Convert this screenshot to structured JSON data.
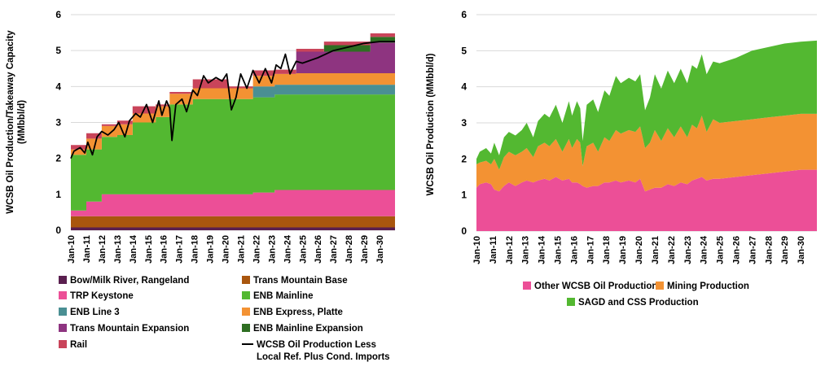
{
  "chart_data": [
    {
      "type": "area",
      "stacking": "step",
      "ylabel_line1": "WCSB Oil Production/Takeaway Capacity",
      "ylabel_line2": "(MMbbl/d)",
      "ylim": [
        0,
        6
      ],
      "yticks": [
        "0",
        "1",
        "2",
        "3",
        "4",
        "5",
        "6"
      ],
      "xlim": [
        2010,
        2031
      ],
      "xticks": [
        "Jan-10",
        "Jan-11",
        "Jan-12",
        "Jan-13",
        "Jan-14",
        "Jan-15",
        "Jan-16",
        "Jan-17",
        "Jan-18",
        "Jan-19",
        "Jan-20",
        "Jan-21",
        "Jan-22",
        "Jan-23",
        "Jan-24",
        "Jan-25",
        "Jan-26",
        "Jan-27",
        "Jan-28",
        "Jan-29",
        "Jan-30"
      ],
      "grid": true,
      "legend_position": "bottom",
      "x": [
        2010,
        2011,
        2012,
        2013,
        2014,
        2015.5,
        2016.4,
        2017.9,
        2020.2,
        2021.8,
        2023.2,
        2024.6,
        2026.4,
        2029.4
      ],
      "series": [
        {
          "name": "Bow/Milk River, Rangeland",
          "color": "#5a1f4f",
          "values": [
            0.08,
            0.08,
            0.08,
            0.08,
            0.08,
            0.08,
            0.08,
            0.08,
            0.08,
            0.08,
            0.08,
            0.08,
            0.08,
            0.08
          ]
        },
        {
          "name": "Trans Mountain Base",
          "color": "#a9560e",
          "values": [
            0.31,
            0.31,
            0.31,
            0.31,
            0.31,
            0.31,
            0.31,
            0.31,
            0.31,
            0.31,
            0.31,
            0.31,
            0.31,
            0.31
          ]
        },
        {
          "name": "TRP Keystone",
          "color": "#ec4f97",
          "values": [
            0.16,
            0.41,
            0.61,
            0.61,
            0.61,
            0.61,
            0.61,
            0.61,
            0.61,
            0.66,
            0.73,
            0.73,
            0.73,
            0.73
          ]
        },
        {
          "name": "ENB Mainline",
          "color": "#53b831",
          "values": [
            1.55,
            1.45,
            1.6,
            1.65,
            2.0,
            2.15,
            2.5,
            2.65,
            2.65,
            2.65,
            2.66,
            2.66,
            2.66,
            2.66
          ]
        },
        {
          "name": "ENB Line 3",
          "color": "#4a8f93",
          "values": [
            0,
            0,
            0,
            0,
            0,
            0,
            0,
            0,
            0,
            0.3,
            0.27,
            0.27,
            0.27,
            0.27
          ]
        },
        {
          "name": "ENB Express, Platte",
          "color": "#f39233",
          "values": [
            0.15,
            0.3,
            0.3,
            0.3,
            0.25,
            0.3,
            0.3,
            0.3,
            0.3,
            0.3,
            0.3,
            0.32,
            0.32,
            0.32
          ]
        },
        {
          "name": "Trans Mountain Expansion",
          "color": "#8e3480",
          "values": [
            0,
            0,
            0,
            0,
            0,
            0,
            0,
            0,
            0,
            0,
            0,
            0.6,
            0.6,
            0.85
          ]
        },
        {
          "name": "ENB Mainline Expansion",
          "color": "#2e6e22",
          "values": [
            0,
            0,
            0,
            0,
            0,
            0,
            0,
            0,
            0,
            0,
            0,
            0,
            0.18,
            0.16
          ]
        },
        {
          "name": "Rail",
          "color": "#c9445a",
          "values": [
            0.12,
            0.15,
            0.05,
            0.1,
            0.2,
            0.05,
            0.05,
            0.25,
            0.05,
            0.15,
            0.12,
            0.08,
            0.1,
            0.1
          ]
        }
      ],
      "line": {
        "name_line1": "WCSB Oil Production Less",
        "name_line2": "Local Ref. Plus Cond. Imports",
        "color": "#000000",
        "x": [
          2010.0,
          2010.2,
          2010.6,
          2010.9,
          2011.1,
          2011.4,
          2011.7,
          2012.0,
          2012.4,
          2012.8,
          2013.1,
          2013.5,
          2013.8,
          2014.2,
          2014.5,
          2014.9,
          2015.3,
          2015.7,
          2015.9,
          2016.2,
          2016.4,
          2016.55,
          2016.8,
          2017.2,
          2017.5,
          2017.9,
          2018.2,
          2018.6,
          2018.9,
          2019.4,
          2019.8,
          2020.1,
          2020.4,
          2020.7,
          2021.0,
          2021.4,
          2021.8,
          2022.2,
          2022.6,
          2023.0,
          2023.3,
          2023.6,
          2023.9,
          2024.2,
          2024.6,
          2025.0,
          2026.0,
          2027.0,
          2028.0,
          2029.0,
          2030.0,
          2031.0
        ],
        "values": [
          2.0,
          2.2,
          2.3,
          2.15,
          2.45,
          2.1,
          2.6,
          2.75,
          2.65,
          2.8,
          3.0,
          2.6,
          3.05,
          3.25,
          3.15,
          3.5,
          3.0,
          3.6,
          3.2,
          3.6,
          3.4,
          2.5,
          3.5,
          3.65,
          3.3,
          3.9,
          3.75,
          4.3,
          4.1,
          4.25,
          4.15,
          4.35,
          3.35,
          3.7,
          4.35,
          3.95,
          4.45,
          4.1,
          4.5,
          4.1,
          4.6,
          4.5,
          4.9,
          4.35,
          4.7,
          4.65,
          4.8,
          5.0,
          5.1,
          5.2,
          5.25,
          5.25
        ]
      }
    },
    {
      "type": "area",
      "stacking": "normal",
      "ylabel": "WCSB Oil Production (MMbbl/d)",
      "ylim": [
        0,
        6
      ],
      "yticks": [
        "0",
        "1",
        "2",
        "3",
        "4",
        "5",
        "6"
      ],
      "xlim": [
        2010,
        2031
      ],
      "xticks": [
        "Jan-10",
        "Jan-11",
        "Jan-12",
        "Jan-13",
        "Jan-14",
        "Jan-15",
        "Jan-16",
        "Jan-17",
        "Jan-18",
        "Jan-19",
        "Jan-20",
        "Jan-21",
        "Jan-22",
        "Jan-23",
        "Jan-24",
        "Jan-25",
        "Jan-26",
        "Jan-27",
        "Jan-28",
        "Jan-29",
        "Jan-30"
      ],
      "grid": true,
      "legend_position": "bottom",
      "x": [
        2010.0,
        2010.2,
        2010.6,
        2010.9,
        2011.1,
        2011.4,
        2011.7,
        2012.0,
        2012.4,
        2012.8,
        2013.1,
        2013.5,
        2013.8,
        2014.2,
        2014.5,
        2014.9,
        2015.3,
        2015.7,
        2015.9,
        2016.2,
        2016.4,
        2016.55,
        2016.8,
        2017.2,
        2017.5,
        2017.9,
        2018.2,
        2018.6,
        2018.9,
        2019.4,
        2019.8,
        2020.1,
        2020.4,
        2020.7,
        2021.0,
        2021.4,
        2021.8,
        2022.2,
        2022.6,
        2023.0,
        2023.3,
        2023.6,
        2023.9,
        2024.2,
        2024.6,
        2025.0,
        2026.0,
        2027.0,
        2028.0,
        2029.0,
        2030.0,
        2031.0
      ],
      "series": [
        {
          "name": "Other WCSB Oil Production",
          "color": "#ec4f97",
          "values": [
            1.2,
            1.3,
            1.35,
            1.3,
            1.15,
            1.1,
            1.25,
            1.35,
            1.25,
            1.35,
            1.4,
            1.35,
            1.4,
            1.45,
            1.4,
            1.5,
            1.4,
            1.45,
            1.35,
            1.35,
            1.3,
            1.25,
            1.2,
            1.25,
            1.25,
            1.35,
            1.35,
            1.4,
            1.35,
            1.4,
            1.35,
            1.45,
            1.1,
            1.15,
            1.2,
            1.2,
            1.3,
            1.25,
            1.35,
            1.3,
            1.4,
            1.45,
            1.5,
            1.4,
            1.45,
            1.45,
            1.5,
            1.55,
            1.6,
            1.65,
            1.7,
            1.7
          ]
        },
        {
          "name": "Mining Production",
          "color": "#f39233",
          "values": [
            0.65,
            0.6,
            0.6,
            0.55,
            0.85,
            0.6,
            0.8,
            0.85,
            0.85,
            0.85,
            0.9,
            0.7,
            0.95,
            1.0,
            0.95,
            1.05,
            0.8,
            1.1,
            0.95,
            1.2,
            1.15,
            0.55,
            1.15,
            1.2,
            0.95,
            1.25,
            1.15,
            1.4,
            1.35,
            1.4,
            1.4,
            1.45,
            1.2,
            1.3,
            1.6,
            1.3,
            1.55,
            1.35,
            1.55,
            1.3,
            1.55,
            1.4,
            1.7,
            1.35,
            1.65,
            1.55,
            1.55,
            1.55,
            1.55,
            1.55,
            1.55,
            1.55
          ]
        },
        {
          "name": "SAGD and CSS Production",
          "color": "#53b831",
          "values": [
            0.15,
            0.3,
            0.35,
            0.3,
            0.45,
            0.4,
            0.55,
            0.55,
            0.55,
            0.6,
            0.7,
            0.55,
            0.7,
            0.8,
            0.8,
            0.95,
            0.8,
            1.05,
            0.9,
            1.05,
            0.95,
            0.7,
            1.15,
            1.2,
            1.1,
            1.3,
            1.25,
            1.5,
            1.4,
            1.45,
            1.4,
            1.45,
            1.05,
            1.25,
            1.55,
            1.45,
            1.6,
            1.5,
            1.6,
            1.5,
            1.65,
            1.65,
            1.7,
            1.6,
            1.6,
            1.65,
            1.75,
            1.9,
            1.95,
            2.0,
            2.0,
            2.03
          ]
        }
      ]
    }
  ]
}
